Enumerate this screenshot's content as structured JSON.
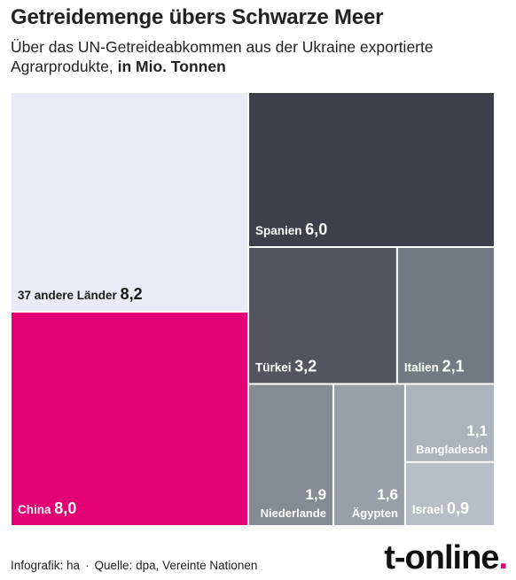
{
  "title": "Getreidemenge übers Schwarze Meer",
  "subtitle_text": "Über das UN-Getreideabkommen aus der Ukraine exportierte Agrarprodukte,",
  "subtitle_unit": "in Mio. Tonnen",
  "footer": {
    "credit": "Infografik: ha",
    "separator": "·",
    "source": "Quelle: dpa, Vereinte Nationen"
  },
  "logo": {
    "text": "t-online",
    "dot": "."
  },
  "chart_data": {
    "type": "treemap",
    "unit": "Mio. Tonnen",
    "items": [
      {
        "label": "37 andere Länder",
        "value": 8.2,
        "value_label": "8,2",
        "color": "#e9ecf7",
        "text_color": "#1a1a1a"
      },
      {
        "label": "China",
        "value": 8.0,
        "value_label": "8,0",
        "color": "#e20074",
        "text_color": "#ffffff"
      },
      {
        "label": "Spanien",
        "value": 6.0,
        "value_label": "6,0",
        "color": "#3d3f4a",
        "text_color": "#ffffff"
      },
      {
        "label": "Türkei",
        "value": 3.2,
        "value_label": "3,2",
        "color": "#52555f",
        "text_color": "#ffffff"
      },
      {
        "label": "Italien",
        "value": 2.1,
        "value_label": "2,1",
        "color": "#747883",
        "text_color": "#ffffff"
      },
      {
        "label": "Niederlande",
        "value": 1.9,
        "value_label": "1,9",
        "color": "#868a95",
        "text_color": "#ffffff"
      },
      {
        "label": "Ägypten",
        "value": 1.6,
        "value_label": "1,6",
        "color": "#9a9ea8",
        "text_color": "#ffffff"
      },
      {
        "label": "Bangladesch",
        "value": 1.1,
        "value_label": "1,1",
        "color": "#aeb2bd",
        "text_color": "#ffffff"
      },
      {
        "label": "Israel",
        "value": 0.9,
        "value_label": "0,9",
        "color": "#b9bdc8",
        "text_color": "#ffffff"
      }
    ]
  }
}
